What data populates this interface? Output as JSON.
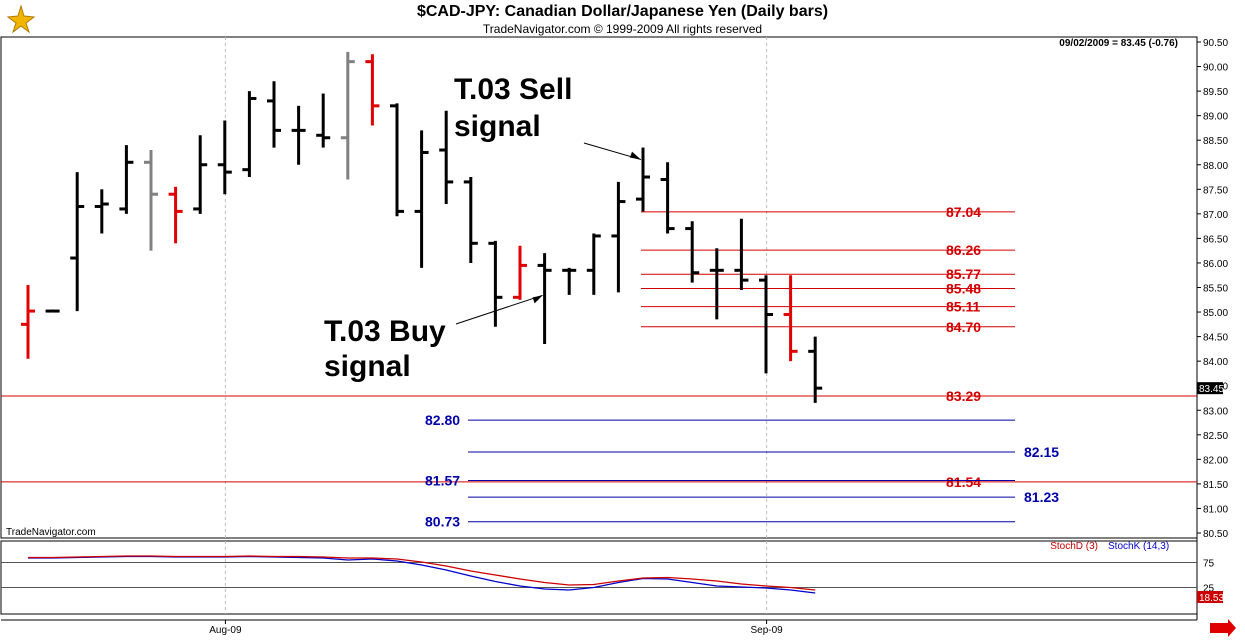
{
  "header": {
    "title": "$CAD-JPY:  Canadian Dollar/Japanese Yen  (Daily bars)",
    "subtitle": "TradeNavigator.com © 1999-2009 All rights reserved",
    "quote": "09/02/2009 = 83.45 (-0.76)",
    "watermark": "TradeNavigator.com",
    "logo_icon": "trade-navigator-logo-icon"
  },
  "colors": {
    "bar_up": "#000000",
    "bar_highlight": "#e00000",
    "bar_gray": "#808080",
    "resistance": "#d40000",
    "support": "#0000aa",
    "stochD": "#cc0000",
    "stochK": "#0000cc",
    "arrow": "#e00000"
  },
  "annotations": [
    {
      "text_lines": [
        "T.03 Sell",
        "signal"
      ],
      "arrow_to_bar": 25
    },
    {
      "text_lines": [
        "T.03 Buy",
        "signal"
      ],
      "arrow_to_bar": 21
    }
  ],
  "chart_data": {
    "type": "bar",
    "title": "$CAD-JPY:  Canadian Dollar/Japanese Yen  (Daily bars)",
    "y_axis": {
      "range": [
        80.5,
        90.6
      ],
      "ticks": [
        "90.50",
        "90.00",
        "89.50",
        "89.00",
        "88.50",
        "88.00",
        "87.50",
        "87.00",
        "86.50",
        "86.00",
        "85.50",
        "85.00",
        "84.50",
        "84.00",
        "83.50",
        "83.00",
        "82.50",
        "82.00",
        "81.50",
        "81.00",
        "80.50"
      ],
      "current_price_label": "83.45"
    },
    "x_axis": {
      "labels": [
        {
          "text": "Aug-09",
          "bar": 9
        },
        {
          "text": "Sep-09",
          "bar": 31
        }
      ]
    },
    "bars": [
      {
        "o": 84.75,
        "h": 85.55,
        "l": 84.05,
        "c": 85.02,
        "color": "red"
      },
      {
        "o": 85.02,
        "h": 85.05,
        "l": 85.02,
        "c": 85.02,
        "color": "black"
      },
      {
        "o": 86.1,
        "h": 87.85,
        "l": 85.02,
        "c": 87.15,
        "color": "black"
      },
      {
        "o": 87.15,
        "h": 87.5,
        "l": 86.6,
        "c": 87.2,
        "color": "black"
      },
      {
        "o": 87.1,
        "h": 88.4,
        "l": 87.0,
        "c": 88.05,
        "color": "black"
      },
      {
        "o": 88.05,
        "h": 88.3,
        "l": 86.25,
        "c": 87.4,
        "color": "gray"
      },
      {
        "o": 87.4,
        "h": 87.55,
        "l": 86.4,
        "c": 87.05,
        "color": "red"
      },
      {
        "o": 87.1,
        "h": 88.6,
        "l": 87.0,
        "c": 88.0,
        "color": "black"
      },
      {
        "o": 88.0,
        "h": 88.9,
        "l": 87.4,
        "c": 87.85,
        "color": "black"
      },
      {
        "o": 87.9,
        "h": 89.5,
        "l": 87.75,
        "c": 89.35,
        "color": "black"
      },
      {
        "o": 89.3,
        "h": 89.7,
        "l": 88.35,
        "c": 88.7,
        "color": "black"
      },
      {
        "o": 88.7,
        "h": 89.2,
        "l": 88.0,
        "c": 88.7,
        "color": "black"
      },
      {
        "o": 88.6,
        "h": 89.45,
        "l": 88.35,
        "c": 88.55,
        "color": "black"
      },
      {
        "o": 88.55,
        "h": 90.3,
        "l": 87.7,
        "c": 90.1,
        "color": "gray"
      },
      {
        "o": 90.1,
        "h": 90.25,
        "l": 88.8,
        "c": 89.2,
        "color": "red"
      },
      {
        "o": 89.2,
        "h": 89.25,
        "l": 86.95,
        "c": 87.05,
        "color": "black"
      },
      {
        "o": 87.05,
        "h": 88.7,
        "l": 85.9,
        "c": 88.25,
        "color": "black"
      },
      {
        "o": 88.3,
        "h": 89.1,
        "l": 87.2,
        "c": 87.65,
        "color": "black"
      },
      {
        "o": 87.65,
        "h": 87.75,
        "l": 86.0,
        "c": 86.4,
        "color": "black"
      },
      {
        "o": 86.4,
        "h": 86.45,
        "l": 84.7,
        "c": 85.3,
        "color": "black"
      },
      {
        "o": 85.3,
        "h": 86.35,
        "l": 85.25,
        "c": 85.95,
        "color": "red"
      },
      {
        "o": 85.95,
        "h": 86.2,
        "l": 84.35,
        "c": 85.85,
        "color": "black"
      },
      {
        "o": 85.85,
        "h": 85.9,
        "l": 85.35,
        "c": 85.85,
        "color": "black"
      },
      {
        "o": 85.85,
        "h": 86.6,
        "l": 85.35,
        "c": 86.55,
        "color": "black"
      },
      {
        "o": 86.55,
        "h": 87.65,
        "l": 85.4,
        "c": 87.25,
        "color": "black"
      },
      {
        "o": 87.3,
        "h": 88.35,
        "l": 87.05,
        "c": 87.75,
        "color": "black"
      },
      {
        "o": 87.7,
        "h": 88.05,
        "l": 86.6,
        "c": 86.7,
        "color": "black"
      },
      {
        "o": 86.7,
        "h": 86.85,
        "l": 85.6,
        "c": 85.8,
        "color": "black"
      },
      {
        "o": 85.85,
        "h": 86.3,
        "l": 84.85,
        "c": 85.85,
        "color": "black"
      },
      {
        "o": 85.85,
        "h": 86.9,
        "l": 85.45,
        "c": 85.65,
        "color": "black"
      },
      {
        "o": 85.65,
        "h": 85.75,
        "l": 83.75,
        "c": 84.95,
        "color": "black"
      },
      {
        "o": 84.95,
        "h": 85.75,
        "l": 84.0,
        "c": 84.2,
        "color": "red"
      },
      {
        "o": 84.2,
        "h": 84.5,
        "l": 83.15,
        "c": 83.45,
        "color": "black"
      }
    ],
    "resistance_levels": [
      {
        "value": 87.04,
        "label": "87.04",
        "from_bar": 25
      },
      {
        "value": 86.26,
        "label": "86.26",
        "from_bar": 25
      },
      {
        "value": 85.77,
        "label": "85.77",
        "from_bar": 25
      },
      {
        "value": 85.48,
        "label": "85.48",
        "from_bar": 25
      },
      {
        "value": 85.11,
        "label": "85.11",
        "from_bar": 25
      },
      {
        "value": 84.7,
        "label": "84.70",
        "from_bar": 25
      },
      {
        "value": 83.29,
        "label": "83.29",
        "full_width": true
      },
      {
        "value": 81.54,
        "label": "81.54",
        "full_width": true
      }
    ],
    "support_levels": [
      {
        "value": 82.8,
        "label": "82.80",
        "label_side": "left"
      },
      {
        "value": 82.15,
        "label": "82.15",
        "label_side": "right"
      },
      {
        "value": 81.57,
        "label": "81.57",
        "label_side": "left"
      },
      {
        "value": 81.23,
        "label": "81.23",
        "label_side": "right"
      },
      {
        "value": 80.73,
        "label": "80.73",
        "label_side": "left"
      }
    ],
    "stochastic": {
      "legend_d": "StochD (3)",
      "legend_k": "StochK (14,3)",
      "levels": [
        "75",
        "25"
      ],
      "current_label": "18.53",
      "stochD": [
        85,
        85,
        86,
        87,
        88,
        88,
        87,
        87,
        87,
        88,
        87,
        87,
        86,
        84,
        84,
        82,
        76,
        68,
        58,
        50,
        42,
        35,
        30,
        31,
        38,
        44,
        45,
        42,
        38,
        32,
        28,
        25,
        20
      ],
      "stochK": [
        84,
        84,
        85,
        86,
        87,
        87,
        86,
        86,
        86,
        87,
        86,
        85,
        84,
        80,
        82,
        78,
        70,
        60,
        48,
        37,
        28,
        22,
        20,
        25,
        35,
        43,
        42,
        35,
        28,
        26,
        24,
        20,
        14
      ]
    }
  }
}
